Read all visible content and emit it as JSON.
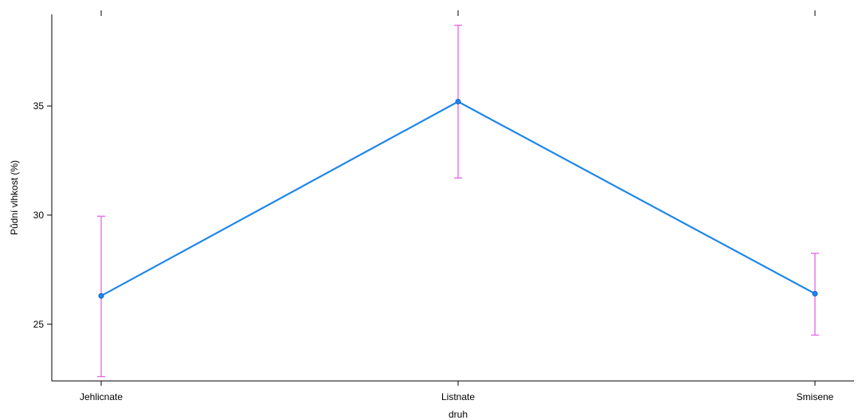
{
  "chart_data": {
    "type": "line",
    "title": "",
    "xlabel": "druh",
    "ylabel": "Půdní vlhkost (%)",
    "categories": [
      "Jehlicnate",
      "Listnate",
      "Smisene"
    ],
    "y_ticks": [
      25,
      30,
      35
    ],
    "ylim": [
      22.4,
      39.2
    ],
    "grid": false,
    "legend": "none",
    "series": [
      {
        "values": [
          26.3,
          35.2,
          26.4
        ],
        "error_lower": [
          22.6,
          31.7,
          24.5
        ],
        "error_upper": [
          29.95,
          38.7,
          28.25
        ]
      }
    ],
    "colors": {
      "line": "#1f86ec",
      "error_bars": "#e763e7",
      "axis": "#000000"
    }
  }
}
